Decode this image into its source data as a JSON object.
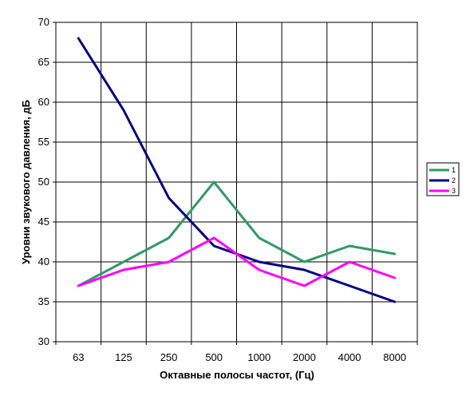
{
  "chart_data": {
    "type": "line",
    "xlabel": "Октавные полосы частот, (Гц)",
    "ylabel": "Уровни звукового давления, дБ",
    "categories": [
      "63",
      "125",
      "250",
      "500",
      "1000",
      "2000",
      "4000",
      "8000"
    ],
    "ylim": [
      30,
      70
    ],
    "yticks": [
      30,
      35,
      40,
      45,
      50,
      55,
      60,
      65,
      70
    ],
    "grid": true,
    "legend_position": "right",
    "series": [
      {
        "name": "1",
        "color": "#339966",
        "values": [
          37,
          40,
          43,
          50,
          43,
          40,
          42,
          41
        ]
      },
      {
        "name": "2",
        "color": "#000080",
        "values": [
          68,
          59,
          48,
          42,
          40,
          39,
          37,
          35
        ]
      },
      {
        "name": "3",
        "color": "#FF00FF",
        "values": [
          37,
          39,
          40,
          43,
          39,
          37,
          40,
          38
        ]
      }
    ]
  }
}
